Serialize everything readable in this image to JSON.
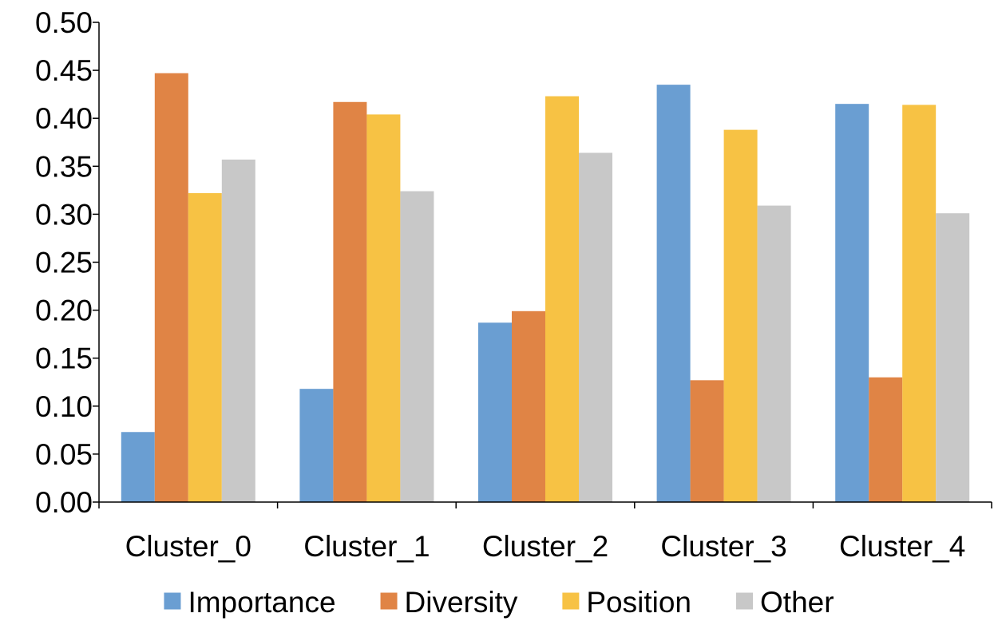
{
  "chart_data": {
    "type": "bar",
    "categories": [
      "Cluster_0",
      "Cluster_1",
      "Cluster_2",
      "Cluster_3",
      "Cluster_4"
    ],
    "series": [
      {
        "name": "Importance",
        "color": "#6a9ed2",
        "values": [
          0.073,
          0.118,
          0.187,
          0.435,
          0.415
        ]
      },
      {
        "name": "Diversity",
        "color": "#e08445",
        "values": [
          0.447,
          0.417,
          0.199,
          0.127,
          0.13
        ]
      },
      {
        "name": "Position",
        "color": "#f7c244",
        "values": [
          0.322,
          0.404,
          0.423,
          0.388,
          0.414
        ]
      },
      {
        "name": "Other",
        "color": "#c8c8c8",
        "values": [
          0.357,
          0.324,
          0.364,
          0.309,
          0.301
        ]
      }
    ],
    "yticks": [
      "0.00",
      "0.05",
      "0.10",
      "0.15",
      "0.20",
      "0.25",
      "0.30",
      "0.35",
      "0.40",
      "0.45",
      "0.50"
    ],
    "ylim": [
      0,
      0.5
    ],
    "grid": false,
    "legend_position": "bottom",
    "title": "",
    "xlabel": "",
    "ylabel": ""
  }
}
